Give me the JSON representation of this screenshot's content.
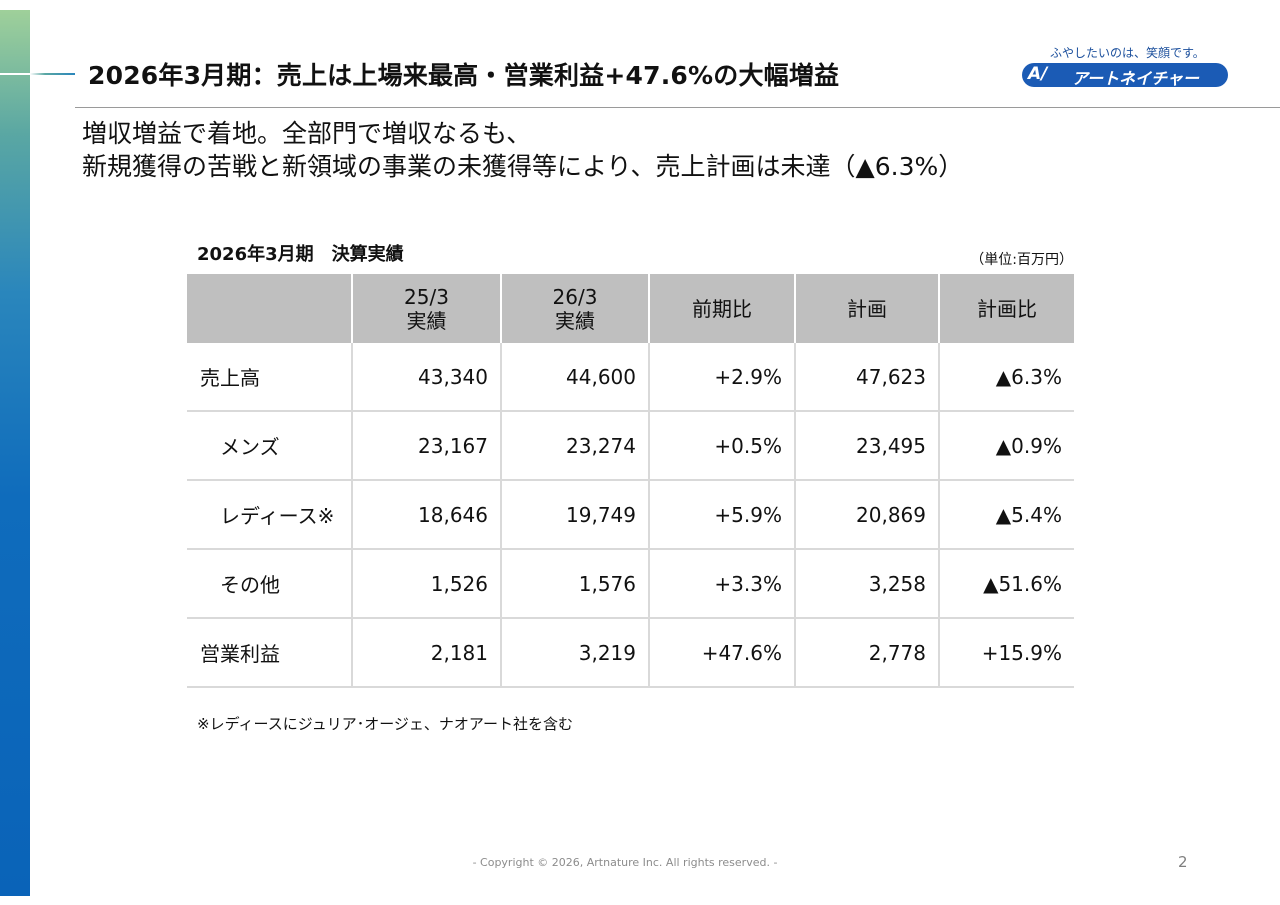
{
  "slide": {
    "title": "2026年3月期：売上は上場来最高・営業利益+47.6%の大幅増益",
    "subtitle_lines": [
      "増収増益で着地。全部門で増収なるも、",
      "新規獲得の苦戦と新領域の事業の未獲得等により、売上計画は未達（▲6.3%）"
    ],
    "page_number": "2",
    "copyright": "- Copyright © 2026, Artnature Inc. All rights reserved. -"
  },
  "logo": {
    "tagline": "ふやしたいのは、笑顔です。",
    "mark": "A/",
    "name": "アートネイチャー",
    "color": "#1b5bb5"
  },
  "table": {
    "heading": "2026年3月期　決算実績",
    "unit": "（単位:百万円）",
    "columns": [
      {
        "line1": "",
        "line2": ""
      },
      {
        "line1": "25/3",
        "line2": "実績"
      },
      {
        "line1": "26/3",
        "line2": "実績"
      },
      {
        "line1": "前期比",
        "line2": ""
      },
      {
        "line1": "計画",
        "line2": ""
      },
      {
        "line1": "計画比",
        "line2": ""
      }
    ],
    "rows": [
      {
        "label": "売上高",
        "indent": false,
        "values": [
          "43,340",
          "44,600",
          "+2.9%",
          "47,623",
          "▲6.3%"
        ]
      },
      {
        "label": "メンズ",
        "indent": true,
        "values": [
          "23,167",
          "23,274",
          "+0.5%",
          "23,495",
          "▲0.9%"
        ]
      },
      {
        "label": "レディース※",
        "indent": true,
        "values": [
          "18,646",
          "19,749",
          "+5.9%",
          "20,869",
          "▲5.4%"
        ]
      },
      {
        "label": "その他",
        "indent": true,
        "values": [
          "1,526",
          "1,576",
          "+3.3%",
          "3,258",
          "▲51.6%"
        ]
      },
      {
        "label": "営業利益",
        "indent": false,
        "values": [
          "2,181",
          "3,219",
          "+47.6%",
          "2,778",
          "+15.9%"
        ]
      }
    ],
    "note": "※レディースにジュリア･オージェ、ナオアート社を含む"
  }
}
